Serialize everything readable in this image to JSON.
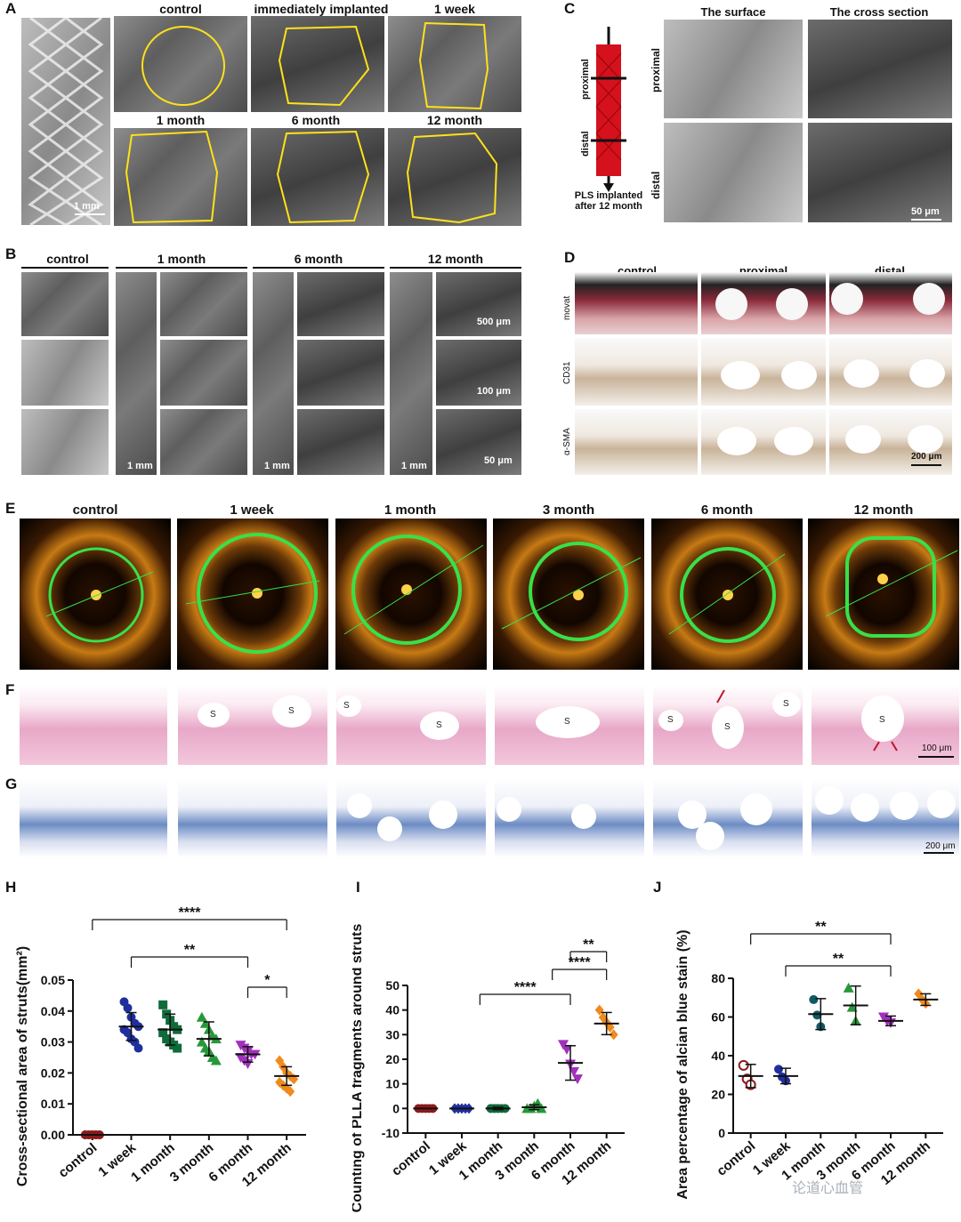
{
  "panelA": {
    "label": "A",
    "titles": [
      "control",
      "immediately implanted",
      "1 week",
      "1 month",
      "6 month",
      "12 month"
    ],
    "scale": "1 mm"
  },
  "panelB": {
    "label": "B",
    "titles": [
      "control",
      "1 month",
      "6 month",
      "12 month"
    ],
    "scales": [
      "500 μm",
      "100 μm",
      "50 μm",
      "1 mm"
    ]
  },
  "panelC": {
    "label": "C",
    "titles": [
      "The surface",
      "The cross section"
    ],
    "rows": [
      "proximal",
      "distal"
    ],
    "diagram_labels": [
      "proximal",
      "distal"
    ],
    "caption_line1": "PLS implanted",
    "caption_line2": "after 12 month",
    "scale": "50 μm"
  },
  "panelD": {
    "label": "D",
    "titles": [
      "control",
      "proximal",
      "distal"
    ],
    "rows": [
      "movat",
      "CD31",
      "α-SMA"
    ],
    "scale": "200 μm"
  },
  "panelE": {
    "label": "E",
    "titles": [
      "control",
      "1 week",
      "1 month",
      "3 month",
      "6 month",
      "12 month"
    ]
  },
  "panelF": {
    "label": "F",
    "strut_mark": "S",
    "scale": "100 μm"
  },
  "panelG": {
    "label": "G",
    "scale": "200 μm"
  },
  "chart_data": [
    {
      "panel": "H",
      "type": "scatter",
      "ylabel": "Cross-sectional area of struts(mm²)",
      "categories": [
        "control",
        "1 week",
        "1 month",
        "3 month",
        "6 month",
        "12 month"
      ],
      "ylim": [
        0,
        0.05
      ],
      "yticks": [
        "0.00",
        "0.01",
        "0.02",
        "0.03",
        "0.04",
        "0.05"
      ],
      "means": [
        0.0,
        0.035,
        0.034,
        0.031,
        0.026,
        0.019
      ],
      "sd": [
        0.0,
        0.0045,
        0.005,
        0.0055,
        0.0025,
        0.003
      ],
      "points": [
        [
          0,
          0,
          0,
          0,
          0,
          0,
          0,
          0,
          0,
          0
        ],
        [
          0.043,
          0.041,
          0.038,
          0.036,
          0.035,
          0.034,
          0.033,
          0.031,
          0.03,
          0.028
        ],
        [
          0.042,
          0.039,
          0.037,
          0.035,
          0.034,
          0.033,
          0.031,
          0.03,
          0.029,
          0.028
        ],
        [
          0.038,
          0.036,
          0.034,
          0.032,
          0.031,
          0.03,
          0.028,
          0.027,
          0.025,
          0.024
        ],
        [
          0.029,
          0.028,
          0.027,
          0.026,
          0.026,
          0.025,
          0.024,
          0.023
        ],
        [
          0.024,
          0.022,
          0.02,
          0.019,
          0.018,
          0.017,
          0.016,
          0.015,
          0.014
        ]
      ],
      "markers": [
        "circle",
        "circle",
        "square",
        "triangle",
        "triangle-down",
        "diamond"
      ],
      "colors": [
        "#8b1a1a",
        "#1f2f9e",
        "#0f6b3a",
        "#27983a",
        "#a22fbd",
        "#f08a1c"
      ],
      "significance": [
        "****",
        "**",
        "*"
      ]
    },
    {
      "panel": "I",
      "type": "scatter",
      "ylabel": "Counting of PLLA fragments around struts",
      "categories": [
        "control",
        "1 week",
        "1 month",
        "3 month",
        "6 month",
        "12 month"
      ],
      "ylim": [
        -10,
        50
      ],
      "yticks": [
        "-10",
        "0",
        "10",
        "20",
        "30",
        "40",
        "50"
      ],
      "means": [
        0,
        0,
        0,
        0.5,
        18.5,
        34.5
      ],
      "sd": [
        0,
        0,
        0.5,
        1,
        7,
        4.5
      ],
      "points": [
        [
          0,
          0,
          0,
          0,
          0
        ],
        [
          0,
          0,
          0,
          0,
          0
        ],
        [
          0,
          0,
          0,
          0,
          0,
          0,
          0,
          0
        ],
        [
          0,
          0,
          1,
          2,
          0
        ],
        [
          26,
          24,
          18,
          15,
          12
        ],
        [
          40,
          37,
          35,
          33,
          30
        ]
      ],
      "markers": [
        "circle",
        "diamond",
        "circle",
        "triangle",
        "triangle-down",
        "diamond"
      ],
      "colors": [
        "#8b1a1a",
        "#1f2f9e",
        "#0f6b3a",
        "#27983a",
        "#a22fbd",
        "#f08a1c"
      ],
      "significance": [
        "****",
        "****",
        "**"
      ]
    },
    {
      "panel": "J",
      "type": "scatter",
      "ylabel": "Area percentage of alcian blue stain (%)",
      "categories": [
        "control",
        "1 week",
        "1 month",
        "3 month",
        "6 month",
        "12 month"
      ],
      "ylim": [
        0,
        80
      ],
      "yticks": [
        "0",
        "20",
        "40",
        "60",
        "80"
      ],
      "means": [
        29.5,
        29.5,
        61.5,
        66,
        58,
        69
      ],
      "sd": [
        6,
        4,
        8,
        10,
        2.5,
        3
      ],
      "points": [
        [
          35,
          28,
          25
        ],
        [
          33,
          29,
          27
        ],
        [
          69,
          61,
          55
        ],
        [
          75,
          65,
          58
        ],
        [
          60,
          58,
          57
        ],
        [
          72,
          69,
          67
        ]
      ],
      "markers": [
        "circle-open",
        "circle",
        "circle",
        "triangle",
        "triangle-down",
        "diamond"
      ],
      "colors": [
        "#8b1a1a",
        "#1f2f9e",
        "#0f5a63",
        "#27983a",
        "#a22fbd",
        "#f08a1c"
      ],
      "significance": [
        "**",
        "**"
      ]
    }
  ],
  "watermark": "论道心血管"
}
